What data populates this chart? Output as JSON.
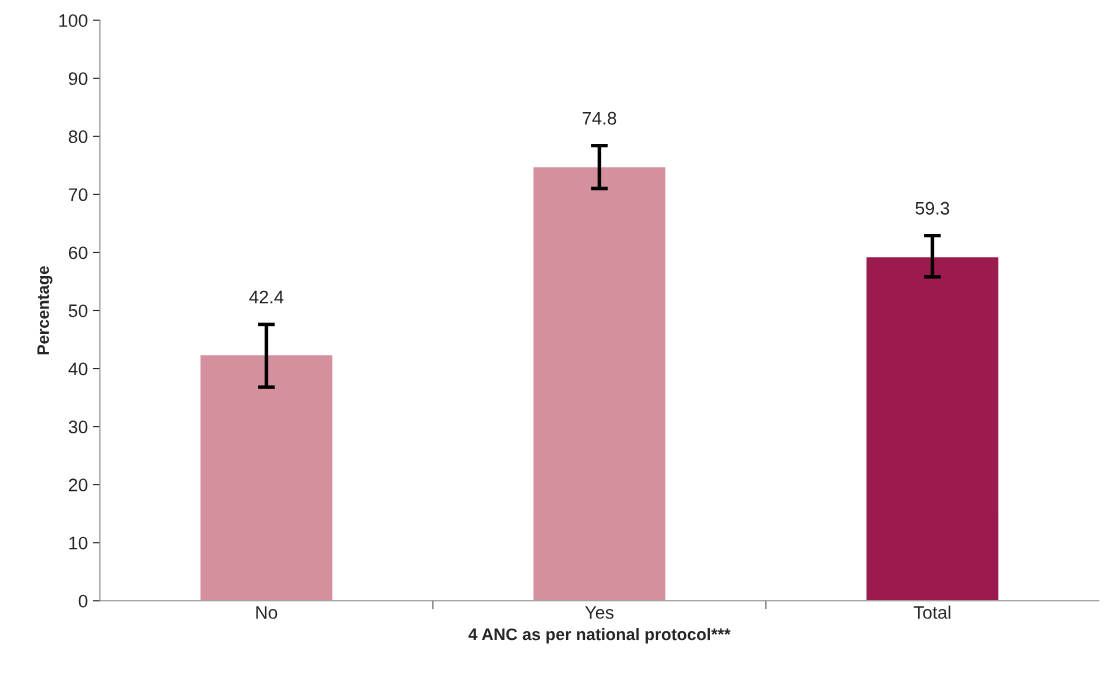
{
  "chart_data": {
    "type": "bar",
    "xlabel": "4 ANC as per national protocol***",
    "ylabel": "Percentage",
    "categories": [
      "No",
      "Yes",
      "Total"
    ],
    "values": [
      42.4,
      74.8,
      59.3
    ],
    "colors": [
      "#d4909c",
      "#d4909c",
      "#9b1b4f"
    ],
    "errors": [
      [
        36.8,
        47.6
      ],
      [
        71.0,
        78.4
      ],
      [
        55.8,
        62.9
      ]
    ],
    "data_labels": true,
    "ylim": [
      0,
      100
    ],
    "yticks": [
      0,
      10,
      20,
      30,
      40,
      50,
      60,
      70,
      80,
      90,
      100
    ],
    "grid": false,
    "legend": false
  }
}
